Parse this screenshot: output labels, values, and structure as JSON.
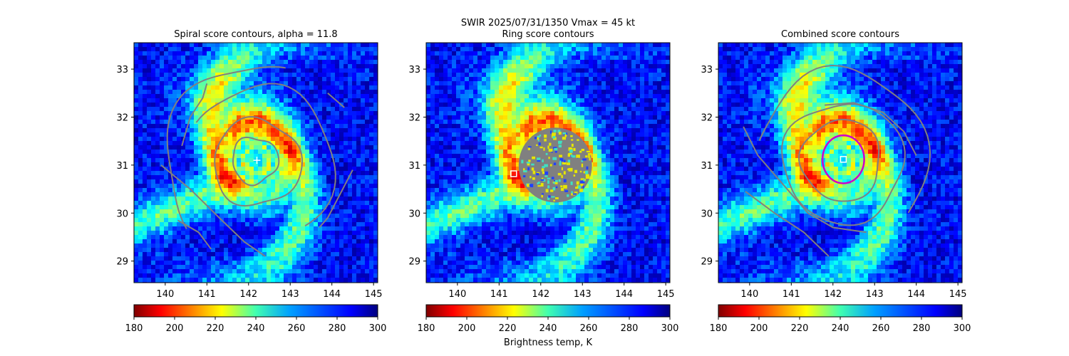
{
  "figure": {
    "suptitle": "SWIR  2025/07/31/1350    Vmax = 45 kt",
    "colorbar_label": "Brightness temp, K"
  },
  "colors": {
    "contour": "#808080",
    "fit_circle": "#cc00cc",
    "marker": "#ffffff"
  },
  "colormap": "jet_r",
  "chart_data": [
    {
      "type": "heatmap",
      "title": "Spiral score contours, alpha = 11.8",
      "xlim": [
        139.25,
        145.1
      ],
      "ylim": [
        28.55,
        33.55
      ],
      "xticks": [
        140,
        141,
        142,
        143,
        144,
        145
      ],
      "yticks": [
        29,
        30,
        31,
        32,
        33
      ],
      "colorbar": {
        "min": 180,
        "max": 300,
        "ticks": [
          180,
          200,
          220,
          240,
          260,
          280,
          300
        ]
      },
      "overlay": "spiral score contours",
      "marker": {
        "shape": "plus",
        "x": 142.2,
        "y": 31.1
      }
    },
    {
      "type": "heatmap",
      "title": "Ring score contours",
      "xlim": [
        139.25,
        145.1
      ],
      "ylim": [
        28.55,
        33.55
      ],
      "xticks": [
        140,
        141,
        142,
        143,
        144,
        145
      ],
      "yticks": [
        29,
        30,
        31,
        32,
        33
      ],
      "colorbar": {
        "min": 180,
        "max": 300,
        "ticks": [
          180,
          200,
          220,
          240,
          260,
          280,
          300
        ]
      },
      "overlay": "ring score field",
      "marker": {
        "shape": "square",
        "x": 141.35,
        "y": 30.82
      }
    },
    {
      "type": "heatmap",
      "title": "Combined score contours",
      "xlim": [
        139.25,
        145.1
      ],
      "ylim": [
        28.55,
        33.55
      ],
      "xticks": [
        140,
        141,
        142,
        143,
        144,
        145
      ],
      "yticks": [
        29,
        30,
        31,
        32,
        33
      ],
      "colorbar": {
        "min": 180,
        "max": 300,
        "ticks": [
          180,
          200,
          220,
          240,
          260,
          280,
          300
        ]
      },
      "overlay": "combined score contours",
      "fit_circle": {
        "x": 142.25,
        "y": 31.12,
        "radius_deg": 0.5
      },
      "marker": {
        "shape": "square",
        "x": 142.25,
        "y": 31.12
      }
    }
  ]
}
